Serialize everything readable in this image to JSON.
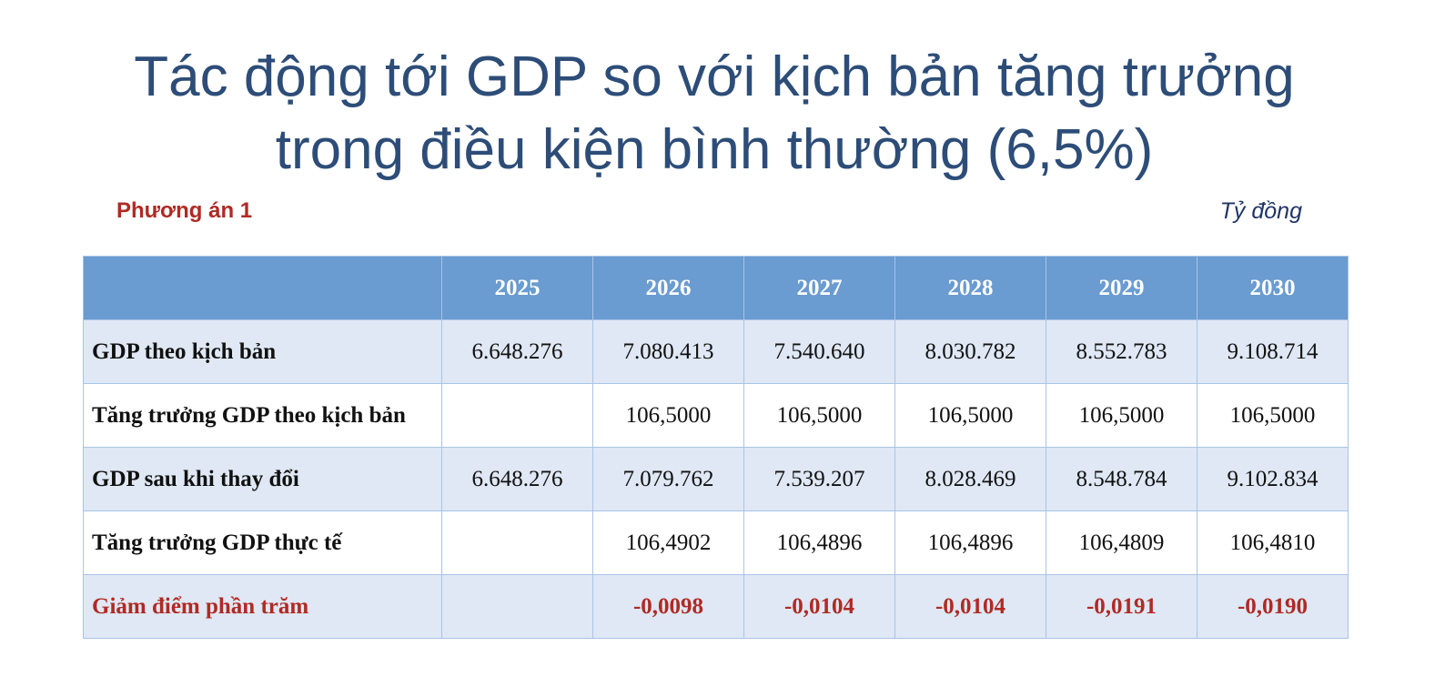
{
  "header": {
    "title_lines": [
      "Tác động tới GDP so với kịch bản tăng trưởng",
      "trong điều kiện bình thường (6,5%)"
    ],
    "subtitle": "Phương án 1",
    "unit": "Tỷ đồng"
  },
  "table": {
    "columns": [
      "2025",
      "2026",
      "2027",
      "2028",
      "2029",
      "2030"
    ],
    "rows": [
      {
        "label": "GDP theo kịch bản",
        "cells": [
          "6.648.276",
          "7.080.413",
          "7.540.640",
          "8.030.782",
          "8.552.783",
          "9.108.714"
        ]
      },
      {
        "label": "Tăng trưởng GDP theo kịch bản",
        "cells": [
          null,
          "106,5000",
          "106,5000",
          "106,5000",
          "106,5000",
          "106,5000"
        ]
      },
      {
        "label": "GDP sau khi thay đổi",
        "cells": [
          "6.648.276",
          "7.079.762",
          "7.539.207",
          "8.028.469",
          "8.548.784",
          "9.102.834"
        ]
      },
      {
        "label": "Tăng trưởng GDP thực tế",
        "cells": [
          null,
          "106,4902",
          "106,4896",
          "106,4896",
          "106,4809",
          "106,4810"
        ]
      },
      {
        "label": "Giảm điểm phần trăm",
        "cells": [
          null,
          "-0,0098",
          "-0,0104",
          "-0,0104",
          "-0,0191",
          "-0,0190"
        ]
      }
    ]
  }
}
